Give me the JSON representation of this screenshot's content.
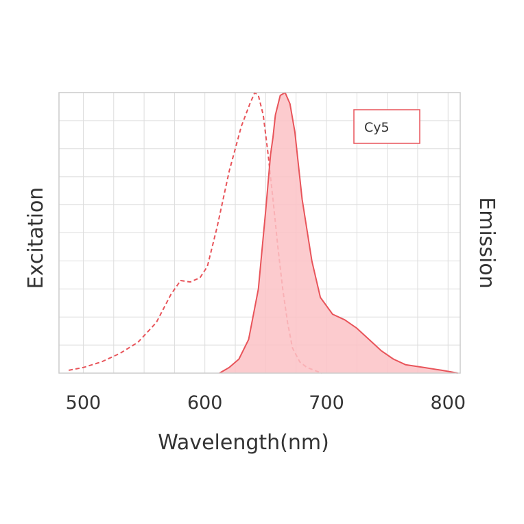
{
  "chart_data": {
    "type": "line",
    "title": "",
    "xlabel": "Wavelength(nm)",
    "ylabel_left": "Excitation",
    "ylabel_right": "Emission",
    "xlim": [
      480,
      810
    ],
    "ylim": [
      0,
      100
    ],
    "x_ticks": [
      500,
      600,
      700,
      800
    ],
    "x_tick_labels": [
      "500",
      "600",
      "700",
      "800"
    ],
    "grid": true,
    "legend": {
      "label": "Cy5",
      "position": "top-right"
    },
    "colors": {
      "line": "#e8545a",
      "fill": "#fcc2c6",
      "grid": "#dddddd",
      "text": "#333333"
    },
    "series": [
      {
        "name": "Excitation",
        "style": "dashed",
        "filled": false,
        "x": [
          488,
          500,
          515,
          530,
          545,
          560,
          572,
          580,
          588,
          596,
          602,
          610,
          620,
          630,
          637,
          641,
          644,
          648,
          652,
          656,
          660,
          664,
          668,
          672,
          678,
          684,
          690,
          696
        ],
        "y": [
          1,
          2,
          4,
          7,
          11,
          18,
          28,
          33,
          32.5,
          34,
          38,
          52,
          72,
          88,
          96,
          100,
          99,
          92,
          78,
          62,
          45,
          30,
          18,
          9,
          4,
          2,
          1,
          0
        ]
      },
      {
        "name": "Emission",
        "style": "solid",
        "filled": true,
        "x": [
          612,
          620,
          628,
          636,
          644,
          650,
          654,
          656,
          658,
          662,
          666,
          670,
          674,
          680,
          688,
          695,
          705,
          715,
          725,
          735,
          745,
          755,
          765,
          780,
          795,
          808
        ],
        "y": [
          0,
          2,
          5,
          12,
          30,
          58,
          78,
          84,
          92,
          99,
          100,
          96,
          86,
          62,
          40,
          27,
          21,
          19,
          16,
          12,
          8,
          5,
          3,
          2,
          1,
          0
        ]
      }
    ]
  }
}
